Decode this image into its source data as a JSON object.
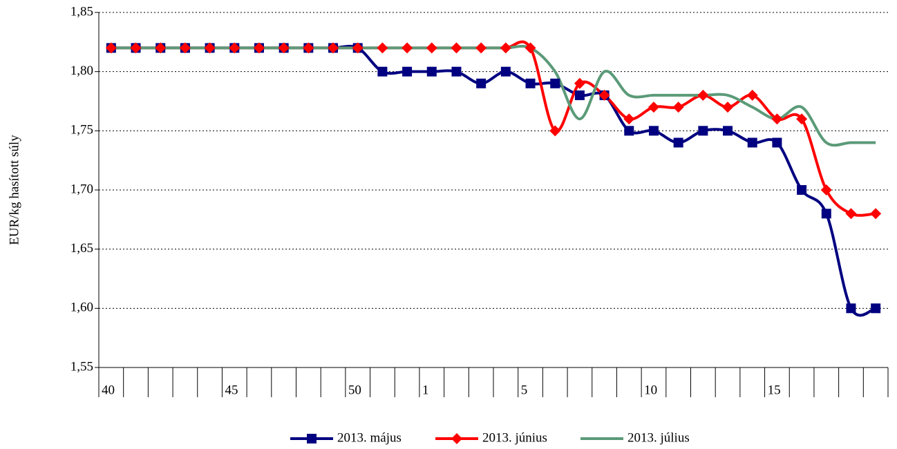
{
  "chart_data": {
    "type": "line",
    "y_label": "EUR/kg hasított súly",
    "categories": [
      "40",
      null,
      null,
      null,
      null,
      "45",
      null,
      null,
      null,
      null,
      "50",
      null,
      null,
      "1",
      null,
      null,
      null,
      "5",
      null,
      null,
      null,
      null,
      "10",
      null,
      null,
      null,
      null,
      "15",
      null,
      null,
      null,
      null
    ],
    "series": [
      {
        "name": "2013. május",
        "color": "#000080",
        "marker": "square",
        "values": [
          1.82,
          1.82,
          1.82,
          1.82,
          1.82,
          1.82,
          1.82,
          1.82,
          1.82,
          1.82,
          1.82,
          1.8,
          1.8,
          1.8,
          1.8,
          1.79,
          1.8,
          1.79,
          1.79,
          1.78,
          1.78,
          1.75,
          1.75,
          1.74,
          1.75,
          1.75,
          1.74,
          1.74,
          1.7,
          1.68,
          1.6,
          1.6
        ]
      },
      {
        "name": "2013. június",
        "color": "#ff0000",
        "marker": "diamond",
        "values": [
          1.82,
          1.82,
          1.82,
          1.82,
          1.82,
          1.82,
          1.82,
          1.82,
          1.82,
          1.82,
          1.82,
          1.82,
          1.82,
          1.82,
          1.82,
          1.82,
          1.82,
          1.82,
          1.75,
          1.79,
          1.78,
          1.76,
          1.77,
          1.77,
          1.78,
          1.77,
          1.78,
          1.76,
          1.76,
          1.7,
          1.68,
          1.68
        ]
      },
      {
        "name": "2013. július",
        "color": "#5b9a78",
        "marker": "none",
        "values": [
          1.82,
          1.82,
          1.82,
          1.82,
          1.82,
          1.82,
          1.82,
          1.82,
          1.82,
          1.82,
          1.82,
          1.82,
          1.82,
          1.82,
          1.82,
          1.82,
          1.82,
          1.82,
          1.8,
          1.76,
          1.8,
          1.78,
          1.78,
          1.78,
          1.78,
          1.78,
          1.77,
          1.76,
          1.77,
          1.74,
          1.74,
          1.74
        ]
      }
    ],
    "ylim": [
      1.55,
      1.85
    ],
    "yticks": [
      {
        "value": 1.55,
        "label": "1,55"
      },
      {
        "value": 1.6,
        "label": "1,60"
      },
      {
        "value": 1.65,
        "label": "1,65"
      },
      {
        "value": 1.7,
        "label": "1,70"
      },
      {
        "value": 1.75,
        "label": "1,75"
      },
      {
        "value": 1.8,
        "label": "1,80"
      },
      {
        "value": 1.85,
        "label": "1,85"
      }
    ],
    "grid": true,
    "smooth": true,
    "legend": "bottom"
  }
}
